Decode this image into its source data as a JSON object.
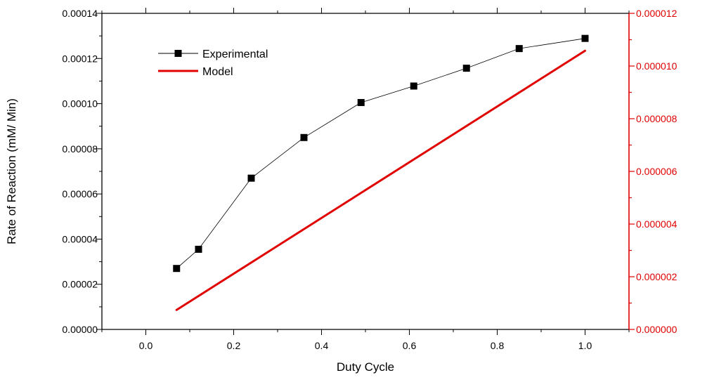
{
  "chart_data": {
    "type": "line",
    "xlabel": "Duty Cycle",
    "ylabel": "Rate of Reaction (mM/ Min)",
    "xlim": [
      -0.1,
      1.1
    ],
    "ylim_left": [
      0,
      0.00014
    ],
    "ylim_right": [
      0,
      1.2e-05
    ],
    "x_ticks": [
      0.0,
      0.2,
      0.4,
      0.6,
      0.8,
      1.0
    ],
    "x_tick_labels": [
      "0.0",
      "0.2",
      "0.4",
      "0.6",
      "0.8",
      "1.0"
    ],
    "y_left_ticks": [
      0,
      2e-05,
      4e-05,
      6e-05,
      8e-05,
      0.0001,
      0.00012,
      0.00014
    ],
    "y_left_tick_labels": [
      "0.00000",
      "0.00002",
      "0.00004",
      "0.00006",
      "0.00008",
      "0.00010",
      "0.00012",
      "0.00014"
    ],
    "y_right_ticks": [
      0,
      2e-06,
      4e-06,
      6e-06,
      8e-06,
      1e-05,
      1.2e-05
    ],
    "y_right_tick_labels": [
      "0.000000",
      "0.000002",
      "0.000004",
      "0.000006",
      "0.000008",
      "0.000010",
      "0.000012"
    ],
    "legend_position": "top-left",
    "grid": false,
    "right_axis_color": "#e00000",
    "series": [
      {
        "name": "Experimental",
        "axis": "left",
        "color": "#000000",
        "marker": "square",
        "x": [
          0.07,
          0.12,
          0.24,
          0.36,
          0.49,
          0.61,
          0.73,
          0.85,
          1.0
        ],
        "y": [
          2.7e-05,
          3.55e-05,
          6.7e-05,
          8.5e-05,
          0.0001005,
          0.0001078,
          0.0001157,
          0.0001244,
          0.0001289
        ]
      },
      {
        "name": "Model",
        "axis": "right",
        "color": "#e00000",
        "marker": "none",
        "x": [
          0.07,
          1.0
        ],
        "y": [
          7.4e-07,
          1.058e-05
        ]
      }
    ]
  }
}
